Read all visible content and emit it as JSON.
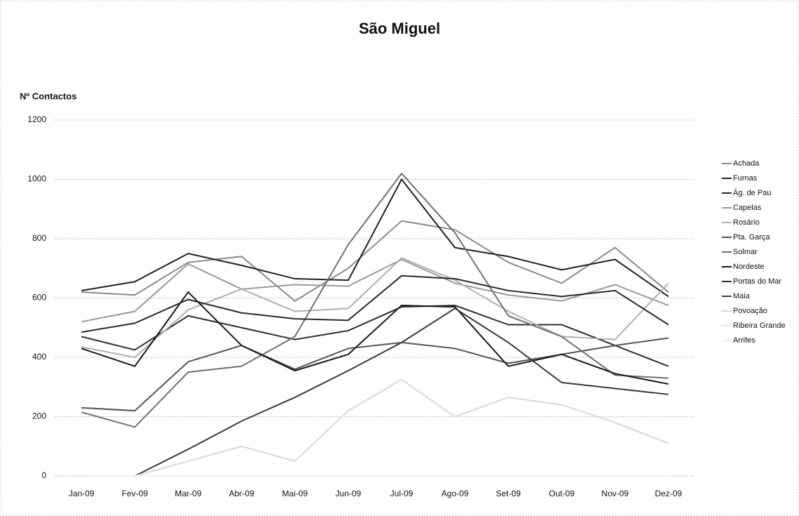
{
  "chart_data": {
    "type": "line",
    "title": "São Miguel",
    "y_label": "Nº Contactos",
    "categories": [
      "Jan-09",
      "Fev-09",
      "Mar-09",
      "Abr-09",
      "Mai-09",
      "Jun-09",
      "Jul-09",
      "Ago-09",
      "Set-09",
      "Out-09",
      "Nov-09",
      "Dez-09"
    ],
    "ylim": [
      0,
      1200
    ],
    "yticks": [
      0,
      200,
      400,
      600,
      800,
      1000,
      1200
    ],
    "grid": true,
    "legend": "right",
    "series": [
      {
        "name": "Achada",
        "color": "#8a8a8a",
        "values": [
          620,
          610,
          720,
          740,
          590,
          700,
          860,
          830,
          720,
          650,
          770,
          620
        ]
      },
      {
        "name": "Furnas",
        "color": "#202020",
        "values": [
          625,
          655,
          750,
          710,
          665,
          660,
          1000,
          770,
          740,
          695,
          730,
          605
        ]
      },
      {
        "name": "Ág. de Pau",
        "color": "#303030",
        "values": [
          470,
          425,
          540,
          500,
          460,
          490,
          570,
          575,
          510,
          510,
          440,
          370
        ]
      },
      {
        "name": "Capelas",
        "color": "#9a9a9a",
        "values": [
          520,
          555,
          715,
          630,
          645,
          640,
          730,
          650,
          610,
          590,
          645,
          575
        ]
      },
      {
        "name": "Rosário",
        "color": "#b0b0b0",
        "values": [
          435,
          400,
          560,
          630,
          555,
          565,
          735,
          660,
          555,
          470,
          460,
          650
        ]
      },
      {
        "name": "Pta. Garça",
        "color": "#555555",
        "values": [
          230,
          220,
          385,
          440,
          360,
          430,
          450,
          430,
          380,
          410,
          440,
          465
        ]
      },
      {
        "name": "Solmar",
        "color": "#707070",
        "values": [
          215,
          165,
          350,
          370,
          470,
          780,
          1020,
          820,
          540,
          470,
          340,
          330
        ]
      },
      {
        "name": "Nordeste",
        "color": "#1a1a1a",
        "values": [
          430,
          370,
          620,
          440,
          355,
          410,
          575,
          570,
          370,
          410,
          345,
          310
        ]
      },
      {
        "name": "Portas do Mar",
        "color": "#2a2a2a",
        "values": [
          485,
          515,
          595,
          550,
          530,
          525,
          675,
          665,
          625,
          605,
          625,
          510
        ]
      },
      {
        "name": "Maia",
        "color": "#3a3a3a",
        "values": [
          null,
          0,
          90,
          185,
          265,
          355,
          450,
          565,
          450,
          315,
          295,
          275
        ]
      },
      {
        "name": "Povoação",
        "color": "#d8d8d8",
        "values": [
          0,
          0,
          50,
          100,
          50,
          220,
          325,
          200,
          265,
          240,
          180,
          110
        ]
      },
      {
        "name": "Ribeira Grande",
        "color": "#e4e4e4",
        "values": [
          0,
          0,
          0,
          0,
          0,
          0,
          0,
          0,
          0,
          0,
          0,
          0
        ]
      },
      {
        "name": "Arrifes",
        "color": "#eeeeee",
        "values": [
          0,
          0,
          0,
          0,
          0,
          0,
          0,
          0,
          0,
          0,
          0,
          0
        ]
      }
    ]
  }
}
